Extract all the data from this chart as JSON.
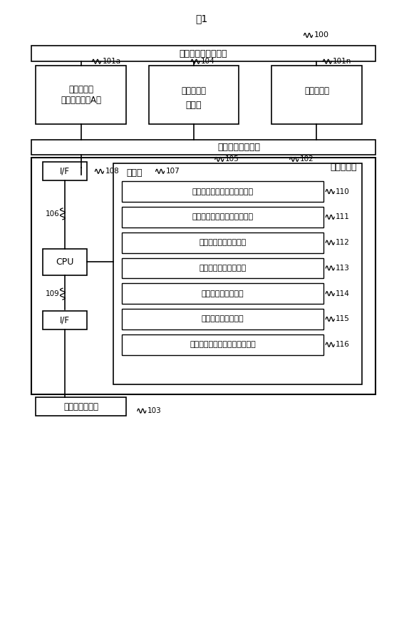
{
  "title": "図1",
  "bg_color": "#ffffff",
  "line_color": "#000000",
  "fig_width": 5.67,
  "fig_height": 8.82,
  "data_network": "データネットワーク",
  "mgmt_network": "管理ネットワーク",
  "mgmt_server": "管理サーバ",
  "memory": "メモリ",
  "cpu": "CPU",
  "if_top": "I/F",
  "if_bottom": "I/F",
  "mgmt_console": "管理コンソール",
  "storage_a_line1": "ストレージ",
  "storage_a_line2": "（ストレージA）",
  "storage_mid": "ストレージ",
  "storage_n": "ストレージ",
  "ellipsis": "・・・",
  "memory_items": [
    "ストレージ構成管理テーブル",
    "データ保護重み管理テーブル",
    "複製構成管理テーブル",
    "複製先決定プログラム",
    "複製計画プログラム",
    "複製制御プログラム",
    "容量調整・複製計画プログラム"
  ],
  "ref_main": "100",
  "ref_storage_a": "101a",
  "ref_storage_mid": "104",
  "ref_storage_n": "101n",
  "ref_mgmt_network": "105",
  "ref_mgmt_server": "102",
  "ref_if_top": "108",
  "ref_memory": "107",
  "ref_left_wire": "106",
  "ref_if_bottom": "109",
  "ref_mgmt_console": "103",
  "ref_items": [
    "110",
    "111",
    "112",
    "113",
    "114",
    "115",
    "116"
  ]
}
